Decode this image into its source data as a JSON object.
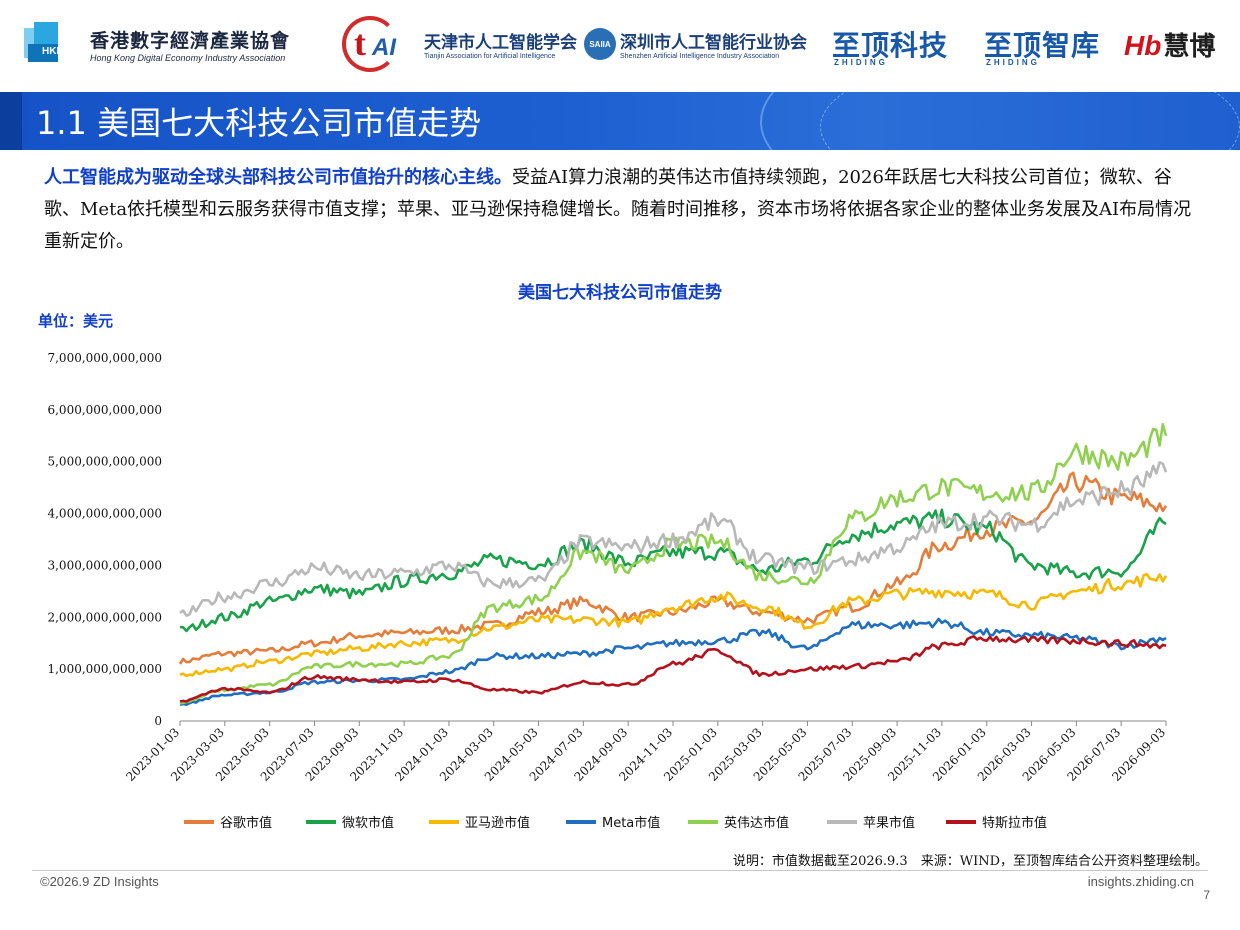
{
  "logos": {
    "hkde_tag": "HKDE",
    "hkde_cn": "香港數字經濟產業協會",
    "hkde_en": "Hong Kong Digital Economy Industry Association",
    "taai_mark": "AI",
    "taai_cn": "天津市人工智能学会",
    "taai_en": "Tianjin Association for Artificial Intelligence",
    "saiia_mark": "SAIIA",
    "saiia_cn": "深圳市人工智能行业协会",
    "saiia_en": "Shenzhen Artificial Intelligence Industry Association",
    "zd_tech": "至顶科技",
    "zd_think": "至顶智库",
    "zd_sub": "ZHIDING",
    "hb_mark": "Hb",
    "hb_name": "慧博"
  },
  "header": {
    "title": "1.1 美国七大科技公司市值走势"
  },
  "paragraph": {
    "lead": "人工智能成为驱动全球头部科技公司市值抬升的核心主线。",
    "body": "受益AI算力浪潮的英伟达市值持续领跑，2026年跃居七大科技公司首位；微软、谷歌、Meta依托模型和云服务获得市值支撑；苹果、亚马逊保持稳健增长。随着时间推移，资本市场将依据各家企业的整体业务发展及AI布局情况重新定价。"
  },
  "chart_data": {
    "type": "line",
    "title": "美国七大科技公司市值走势",
    "unit_label": "单位：美元",
    "ylim": [
      0,
      7000000000000
    ],
    "y_ticks": [
      "0",
      "1,000,000,000,000",
      "2,000,000,000,000",
      "3,000,000,000,000",
      "4,000,000,000,000",
      "5,000,000,000,000",
      "6,000,000,000,000",
      "7,000,000,000,000"
    ],
    "x": [
      "2023-01-03",
      "2023-03-03",
      "2023-05-03",
      "2023-07-03",
      "2023-09-03",
      "2023-11-03",
      "2024-01-03",
      "2024-03-03",
      "2024-05-03",
      "2024-07-03",
      "2024-09-03",
      "2024-11-03",
      "2025-01-03",
      "2025-03-03",
      "2025-05-03",
      "2025-07-03",
      "2025-09-03",
      "2025-11-03",
      "2026-01-03",
      "2026-03-03",
      "2026-05-03",
      "2026-07-03",
      "2026-09-03"
    ],
    "legend_position": "bottom",
    "grid": false,
    "series": [
      {
        "name": "谷歌市值",
        "color": "#e57d3a",
        "values": [
          1.15,
          1.3,
          1.35,
          1.5,
          1.65,
          1.7,
          1.75,
          1.85,
          2.1,
          2.3,
          2.0,
          2.1,
          2.3,
          2.1,
          1.95,
          2.2,
          2.65,
          3.4,
          3.7,
          3.85,
          4.6,
          4.3,
          4.15
        ]
      },
      {
        "name": "微软市值",
        "color": "#19a24a",
        "values": [
          1.75,
          2.0,
          2.3,
          2.55,
          2.45,
          2.7,
          2.85,
          3.1,
          3.05,
          3.4,
          3.05,
          3.25,
          3.25,
          2.9,
          3.1,
          3.6,
          3.8,
          3.9,
          3.7,
          3.0,
          2.85,
          2.9,
          3.8
        ]
      },
      {
        "name": "亚马逊市值",
        "color": "#f6b800",
        "values": [
          0.9,
          1.0,
          1.15,
          1.3,
          1.4,
          1.5,
          1.55,
          1.8,
          1.95,
          1.95,
          1.9,
          2.2,
          2.4,
          2.2,
          1.85,
          2.3,
          2.45,
          2.5,
          2.45,
          2.25,
          2.5,
          2.65,
          2.8
        ]
      },
      {
        "name": "Meta市值",
        "color": "#1f6fc0",
        "values": [
          0.32,
          0.5,
          0.55,
          0.75,
          0.78,
          0.8,
          0.95,
          1.25,
          1.25,
          1.3,
          1.4,
          1.5,
          1.55,
          1.7,
          1.4,
          1.85,
          1.85,
          1.9,
          1.7,
          1.65,
          1.6,
          1.45,
          1.6
        ]
      },
      {
        "name": "英伟达市值",
        "color": "#8fd14f",
        "values": [
          0.35,
          0.6,
          0.7,
          1.05,
          1.1,
          1.1,
          1.25,
          2.2,
          2.35,
          3.25,
          2.9,
          3.4,
          3.45,
          2.8,
          2.7,
          3.9,
          4.3,
          4.5,
          4.4,
          4.4,
          5.2,
          5.0,
          5.5
        ]
      },
      {
        "name": "苹果市值",
        "color": "#b8b8b8",
        "values": [
          2.05,
          2.4,
          2.65,
          2.95,
          2.8,
          2.85,
          3.0,
          2.65,
          2.7,
          3.45,
          3.35,
          3.5,
          3.85,
          3.1,
          2.95,
          3.1,
          3.35,
          3.8,
          3.9,
          3.8,
          4.25,
          4.45,
          4.8
        ]
      },
      {
        "name": "特斯拉市值",
        "color": "#b3121c",
        "values": [
          0.38,
          0.62,
          0.55,
          0.85,
          0.8,
          0.75,
          0.8,
          0.6,
          0.55,
          0.75,
          0.7,
          1.1,
          1.35,
          0.9,
          1.0,
          1.05,
          1.15,
          1.45,
          1.6,
          1.55,
          1.55,
          1.5,
          1.45
        ]
      }
    ]
  },
  "note": "说明：市值数据截至2026.9.3　来源：WIND，至顶智库结合公开资料整理绘制。",
  "footer": {
    "copyright": "©2026.9 ZD Insights",
    "site": "insights.zhiding.cn",
    "page": "7"
  }
}
